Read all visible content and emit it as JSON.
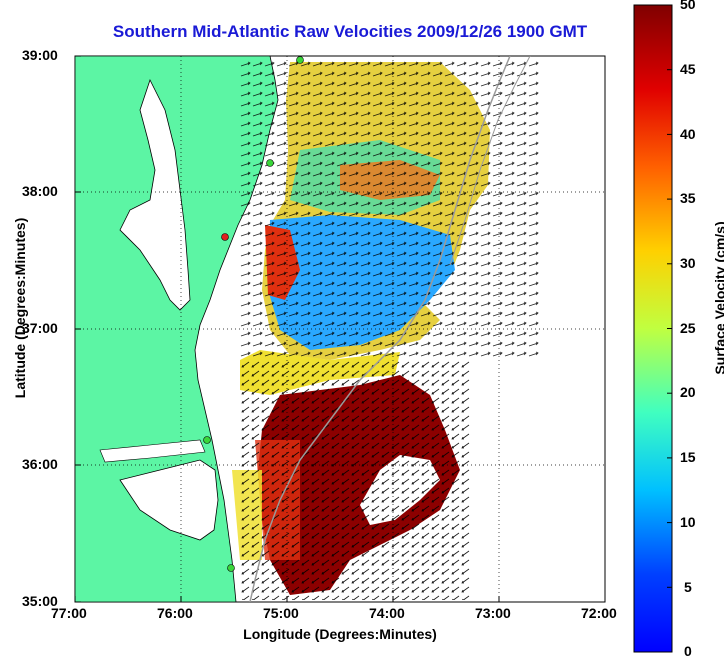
{
  "title": "Southern Mid-Atlantic Raw Velocities 2009/12/26 1900 GMT",
  "x_axis": {
    "label": "Longitude (Degrees:Minutes)",
    "ticks": [
      "77:00",
      "76:00",
      "75:00",
      "74:00",
      "73:00",
      "72:00"
    ]
  },
  "y_axis": {
    "label": "Latitude (Degrees:Minutes)",
    "ticks": [
      "39:00",
      "38:00",
      "37:00",
      "36:00",
      "35:00"
    ]
  },
  "colorbar": {
    "label": "Surface Velocity (cm/s)",
    "ticks": [
      "50",
      "45",
      "40",
      "35",
      "30",
      "25",
      "20",
      "15",
      "10",
      "5",
      "0"
    ],
    "range": [
      0,
      50
    ],
    "colormap": "jet"
  },
  "colors": {
    "land": "#5cf5a4",
    "title": "#1a1ad6"
  },
  "map_extent": {
    "lon": [
      -77,
      -72
    ],
    "lat": [
      35,
      39
    ]
  },
  "stations": [
    {
      "name": "station-north",
      "color": "#3ad63a"
    },
    {
      "name": "station-delmarva",
      "color": "#3ad63a"
    },
    {
      "name": "station-chincoteague",
      "color": "#e02020"
    },
    {
      "name": "station-outer-banks-north",
      "color": "#3ad63a"
    },
    {
      "name": "station-outer-banks-south",
      "color": "#3ad63a"
    }
  ]
}
